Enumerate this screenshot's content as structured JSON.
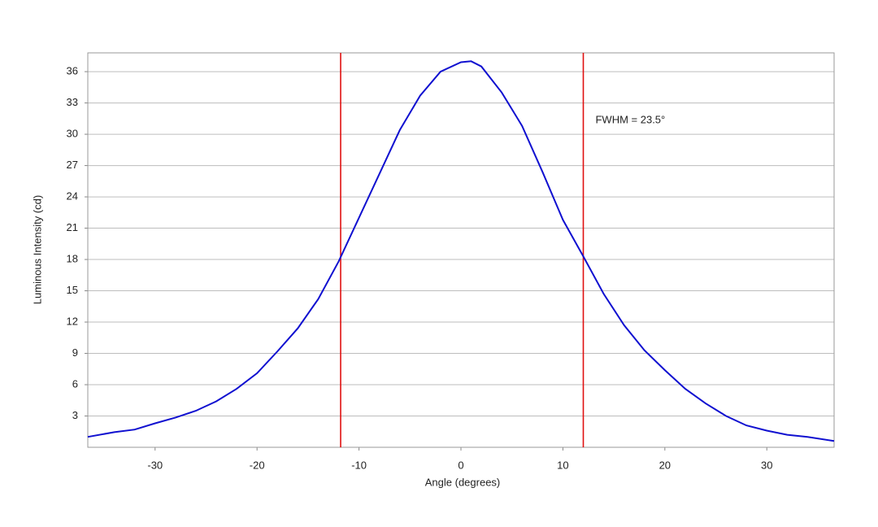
{
  "chart_data": {
    "type": "line",
    "x_label": "Angle (degrees)",
    "y_label": "Luminous Intensity (cd)",
    "annotation": "FWHM = 23.5°",
    "x": [
      -36.6,
      -34,
      -32,
      -30,
      -28,
      -26,
      -24,
      -22,
      -20,
      -18,
      -16,
      -14,
      -12,
      -10,
      -8,
      -6,
      -4,
      -2,
      0,
      1,
      2,
      4,
      6,
      8,
      10,
      12,
      14,
      16,
      18,
      20,
      22,
      24,
      26,
      28,
      30,
      32,
      34,
      36.6
    ],
    "series": [
      {
        "color": "#1010d0",
        "values": [
          1.0,
          1.45,
          1.7,
          2.3,
          2.85,
          3.5,
          4.4,
          5.6,
          7.1,
          9.2,
          11.4,
          14.2,
          17.8,
          22.0,
          26.2,
          30.4,
          33.7,
          36.0,
          36.9,
          37.0,
          36.5,
          34.0,
          30.8,
          26.4,
          21.8,
          18.3,
          14.7,
          11.7,
          9.3,
          7.4,
          5.6,
          4.2,
          3.0,
          2.1,
          1.6,
          1.2,
          1.0,
          0.6
        ]
      }
    ],
    "vlines": [
      -11.8,
      12.0
    ],
    "vline_color": "#e01010",
    "xlim": [
      -36.6,
      36.6
    ],
    "ylim": [
      0,
      37.8
    ],
    "xticks": [
      -30,
      -20,
      -10,
      0,
      10,
      20,
      30
    ],
    "yticks": [
      3,
      6,
      9,
      12,
      15,
      18,
      21,
      24,
      27,
      30,
      33,
      36
    ],
    "grid": true
  }
}
